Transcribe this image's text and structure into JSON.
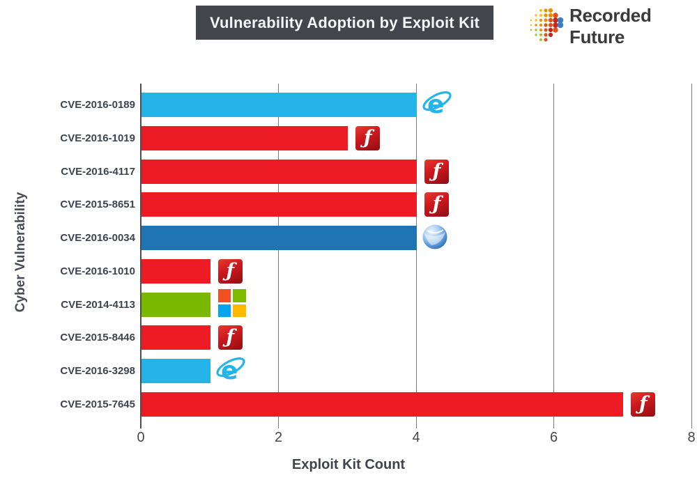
{
  "header": {
    "title": "Vulnerability Adoption by Exploit Kit",
    "brand_name": "Recorded Future"
  },
  "chart_data": {
    "type": "bar",
    "orientation": "horizontal",
    "title": "Vulnerability Adoption by Exploit Kit",
    "xlabel": "Exploit Kit Count",
    "ylabel": "Cyber Vulnerability",
    "xlim": [
      0,
      8
    ],
    "xticks": [
      0,
      2,
      4,
      6,
      8
    ],
    "grid": true,
    "legend": false,
    "categories": [
      "CVE-2016-0189",
      "CVE-2016-1019",
      "CVE-2016-4117",
      "CVE-2015-8651",
      "CVE-2016-0034",
      "CVE-2016-1010",
      "CVE-2014-4113",
      "CVE-2015-8446",
      "CVE-2016-3298",
      "CVE-2015-7645"
    ],
    "values": [
      4,
      3,
      4,
      4,
      4,
      1,
      1,
      1,
      1,
      7
    ],
    "bar_colors": [
      "#25b4ea",
      "#ed1c24",
      "#ed1c24",
      "#ed1c24",
      "#1f74b4",
      "#ed1c24",
      "#7ab800",
      "#ed1c24",
      "#25b4ea",
      "#ed1c24"
    ],
    "icons": [
      "internet-explorer",
      "flash",
      "flash",
      "flash",
      "silverlight",
      "flash",
      "microsoft",
      "flash",
      "internet-explorer",
      "flash"
    ]
  },
  "colors": {
    "red": "#ed1c24",
    "light_blue": "#25b4ea",
    "dark_blue": "#1f74b4",
    "green": "#7ab800",
    "title_bg": "#43454d",
    "grid": "#7a7b80",
    "axis": "#4d4d4d",
    "label_text": "#3d4450"
  }
}
